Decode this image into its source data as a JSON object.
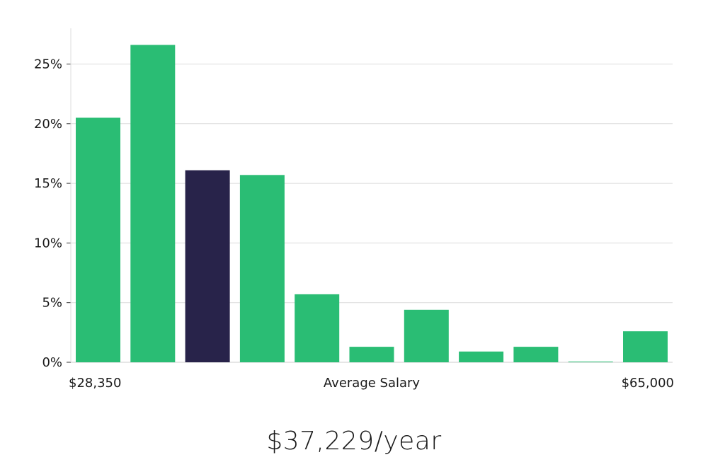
{
  "chart_data": {
    "type": "bar",
    "title": "",
    "xlabel": "Average Salary",
    "ylabel": "",
    "x_range_labels": {
      "min": "$28,350",
      "max": "$65,000"
    },
    "ylim": [
      0,
      28
    ],
    "yticks": [
      0,
      5,
      10,
      15,
      20,
      25
    ],
    "ytick_labels": [
      "0%",
      "5%",
      "10%",
      "15%",
      "20%",
      "25%"
    ],
    "grid": true,
    "values": [
      20.5,
      26.6,
      16.1,
      15.7,
      5.7,
      1.3,
      4.4,
      0.9,
      1.3,
      0.05,
      2.6
    ],
    "highlight_index": 2,
    "colors": {
      "bar": "#2abd74",
      "highlight": "#28234a",
      "grid": "#dcdcdc",
      "axis": "#cccccc"
    }
  },
  "headline": "$37,229/year"
}
